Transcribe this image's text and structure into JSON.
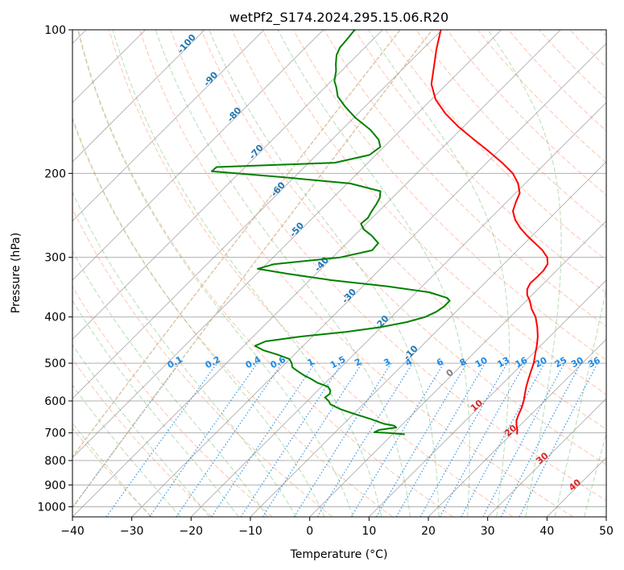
{
  "chart_data": {
    "type": "line",
    "title": "wetPf2_S174.2024.295.15.06.R20",
    "xlabel": "Temperature (°C)",
    "ylabel": "Pressure (hPa)",
    "xlim": [
      -40,
      50
    ],
    "ylim": [
      1050,
      100
    ],
    "y_scale": "log",
    "x_ticks": [
      -40,
      -30,
      -20,
      -10,
      0,
      10,
      20,
      30,
      40,
      50
    ],
    "x_tick_labels": [
      "−40",
      "−30",
      "−20",
      "−10",
      "0",
      "10",
      "20",
      "30",
      "40",
      "50"
    ],
    "y_ticks": [
      100,
      200,
      300,
      400,
      500,
      600,
      700,
      800,
      900,
      1000
    ],
    "y_tick_labels": [
      "100",
      "200",
      "300",
      "400",
      "500",
      "600",
      "700",
      "800",
      "900",
      "1000"
    ],
    "grid": true,
    "skew_factor": 35,
    "colors": {
      "temperature": "#ff0000",
      "dewpoint": "#008000",
      "dry_adiabat": "#ff7f50",
      "moist_adiabat": "#2ca02c",
      "mixing_ratio": "#1e88e5",
      "isotherm": "#808080",
      "grid": "#b0b0b0",
      "ice_curve": "#d2b48c",
      "dry_label": "#d62728",
      "moist_label": "#1f77b4"
    },
    "series": [
      {
        "key": "temperature",
        "points": [
          [
            21,
            705
          ],
          [
            20.3,
            690
          ],
          [
            19.4,
            675
          ],
          [
            18.6,
            660
          ],
          [
            17.9,
            640
          ],
          [
            17.3,
            620
          ],
          [
            16.5,
            600
          ],
          [
            15.5,
            580
          ],
          [
            14.5,
            560
          ],
          [
            13.6,
            540
          ],
          [
            12.7,
            520
          ],
          [
            11.8,
            500
          ],
          [
            10.6,
            480
          ],
          [
            9.4,
            460
          ],
          [
            8,
            440
          ],
          [
            6.3,
            420
          ],
          [
            4.3,
            400
          ],
          [
            2.3,
            385
          ],
          [
            0.6,
            370
          ],
          [
            -0.8,
            360
          ],
          [
            -1.8,
            350
          ],
          [
            -2.3,
            340
          ],
          [
            -2.2,
            330
          ],
          [
            -2.2,
            320
          ],
          [
            -2.6,
            310
          ],
          [
            -3.8,
            300
          ],
          [
            -5.8,
            290
          ],
          [
            -8.3,
            280
          ],
          [
            -10.9,
            270
          ],
          [
            -13.4,
            260
          ],
          [
            -15.6,
            250
          ],
          [
            -17.4,
            240
          ],
          [
            -18.4,
            230
          ],
          [
            -19.3,
            220
          ],
          [
            -21.2,
            210
          ],
          [
            -23.8,
            200
          ],
          [
            -27.4,
            190
          ],
          [
            -31.5,
            180
          ],
          [
            -36,
            170
          ],
          [
            -40.7,
            160
          ],
          [
            -45.2,
            150
          ],
          [
            -49.3,
            140
          ],
          [
            -52.6,
            130
          ],
          [
            -55,
            120
          ],
          [
            -57.6,
            110
          ],
          [
            -60.2,
            100
          ]
        ]
      },
      {
        "key": "dewpoint",
        "points": [
          [
            2.1,
            705
          ],
          [
            -0.9,
            700
          ],
          [
            -3.4,
            698
          ],
          [
            -3,
            690
          ],
          [
            -0.5,
            682
          ],
          [
            -1.2,
            676
          ],
          [
            -3.2,
            670
          ],
          [
            -6.2,
            655
          ],
          [
            -9.6,
            640
          ],
          [
            -12.9,
            625
          ],
          [
            -15.5,
            610
          ],
          [
            -16.4,
            600
          ],
          [
            -17.6,
            590
          ],
          [
            -17.4,
            580
          ],
          [
            -17.9,
            570
          ],
          [
            -18.9,
            560
          ],
          [
            -21.3,
            550
          ],
          [
            -23,
            540
          ],
          [
            -24.9,
            530
          ],
          [
            -26.6,
            520
          ],
          [
            -28.2,
            510
          ],
          [
            -29,
            500
          ],
          [
            -30.1,
            490
          ],
          [
            -32.8,
            480
          ],
          [
            -35.9,
            470
          ],
          [
            -38.1,
            460
          ],
          [
            -37.1,
            450
          ],
          [
            -32.2,
            440
          ],
          [
            -25.1,
            430
          ],
          [
            -20,
            420
          ],
          [
            -16.5,
            410
          ],
          [
            -14.3,
            400
          ],
          [
            -13.3,
            390
          ],
          [
            -12.9,
            380
          ],
          [
            -12.9,
            370
          ],
          [
            -13.8,
            365
          ],
          [
            -17.8,
            355
          ],
          [
            -25.9,
            345
          ],
          [
            -36.2,
            335
          ],
          [
            -44.6,
            325
          ],
          [
            -50.7,
            317
          ],
          [
            -48.7,
            310
          ],
          [
            -38.7,
            300
          ],
          [
            -34.5,
            290
          ],
          [
            -34.7,
            280
          ],
          [
            -37.1,
            270
          ],
          [
            -39.5,
            262
          ],
          [
            -40.9,
            255
          ],
          [
            -40.7,
            248
          ],
          [
            -41.2,
            240
          ],
          [
            -41.6,
            232
          ],
          [
            -42.1,
            225
          ],
          [
            -43.1,
            218
          ],
          [
            -49.5,
            210
          ],
          [
            -61.4,
            204
          ],
          [
            -74.9,
            198
          ],
          [
            -74.8,
            194
          ],
          [
            -55.6,
            190
          ],
          [
            -51.1,
            183
          ],
          [
            -50.6,
            176
          ],
          [
            -52.1,
            170
          ],
          [
            -55.2,
            162
          ],
          [
            -59.7,
            153
          ],
          [
            -63.3,
            145
          ],
          [
            -66.3,
            138
          ],
          [
            -68.1,
            132
          ],
          [
            -69.5,
            128
          ],
          [
            -70.9,
            122
          ],
          [
            -72.1,
            118
          ],
          [
            -73.5,
            113
          ],
          [
            -74.2,
            109
          ],
          [
            -74.4,
            105
          ],
          [
            -74.7,
            100
          ]
        ]
      }
    ],
    "dry_adiabat_labels": [
      {
        "text": "0",
        "temp": 0,
        "p": 530
      },
      {
        "text": "10",
        "temp": 10,
        "p": 620
      },
      {
        "text": "20",
        "temp": 20,
        "p": 700
      },
      {
        "text": "30",
        "temp": 30,
        "p": 800
      },
      {
        "text": "40",
        "temp": 40,
        "p": 910
      }
    ],
    "moist_adiabat_labels": [
      {
        "text": "-100",
        "temp": -100,
        "p": 108
      },
      {
        "text": "-90",
        "temp": -90,
        "p": 128
      },
      {
        "text": "-80",
        "temp": -80,
        "p": 152
      },
      {
        "text": "-70",
        "temp": -70,
        "p": 182
      },
      {
        "text": "-60",
        "temp": -60,
        "p": 218
      },
      {
        "text": "-50",
        "temp": -50,
        "p": 265
      },
      {
        "text": "-40",
        "temp": -40,
        "p": 313
      },
      {
        "text": "-30",
        "temp": -30,
        "p": 365
      },
      {
        "text": "-20",
        "temp": -20,
        "p": 415
      },
      {
        "text": "-10",
        "temp": -10,
        "p": 480
      }
    ],
    "mixing_ratio_labels": [
      "0.1",
      "0.2",
      "0.4",
      "0.6",
      "1",
      "1.5",
      "2",
      "3",
      "4",
      "6",
      "8",
      "10",
      "13",
      "16",
      "20",
      "25",
      "30",
      "36"
    ]
  }
}
